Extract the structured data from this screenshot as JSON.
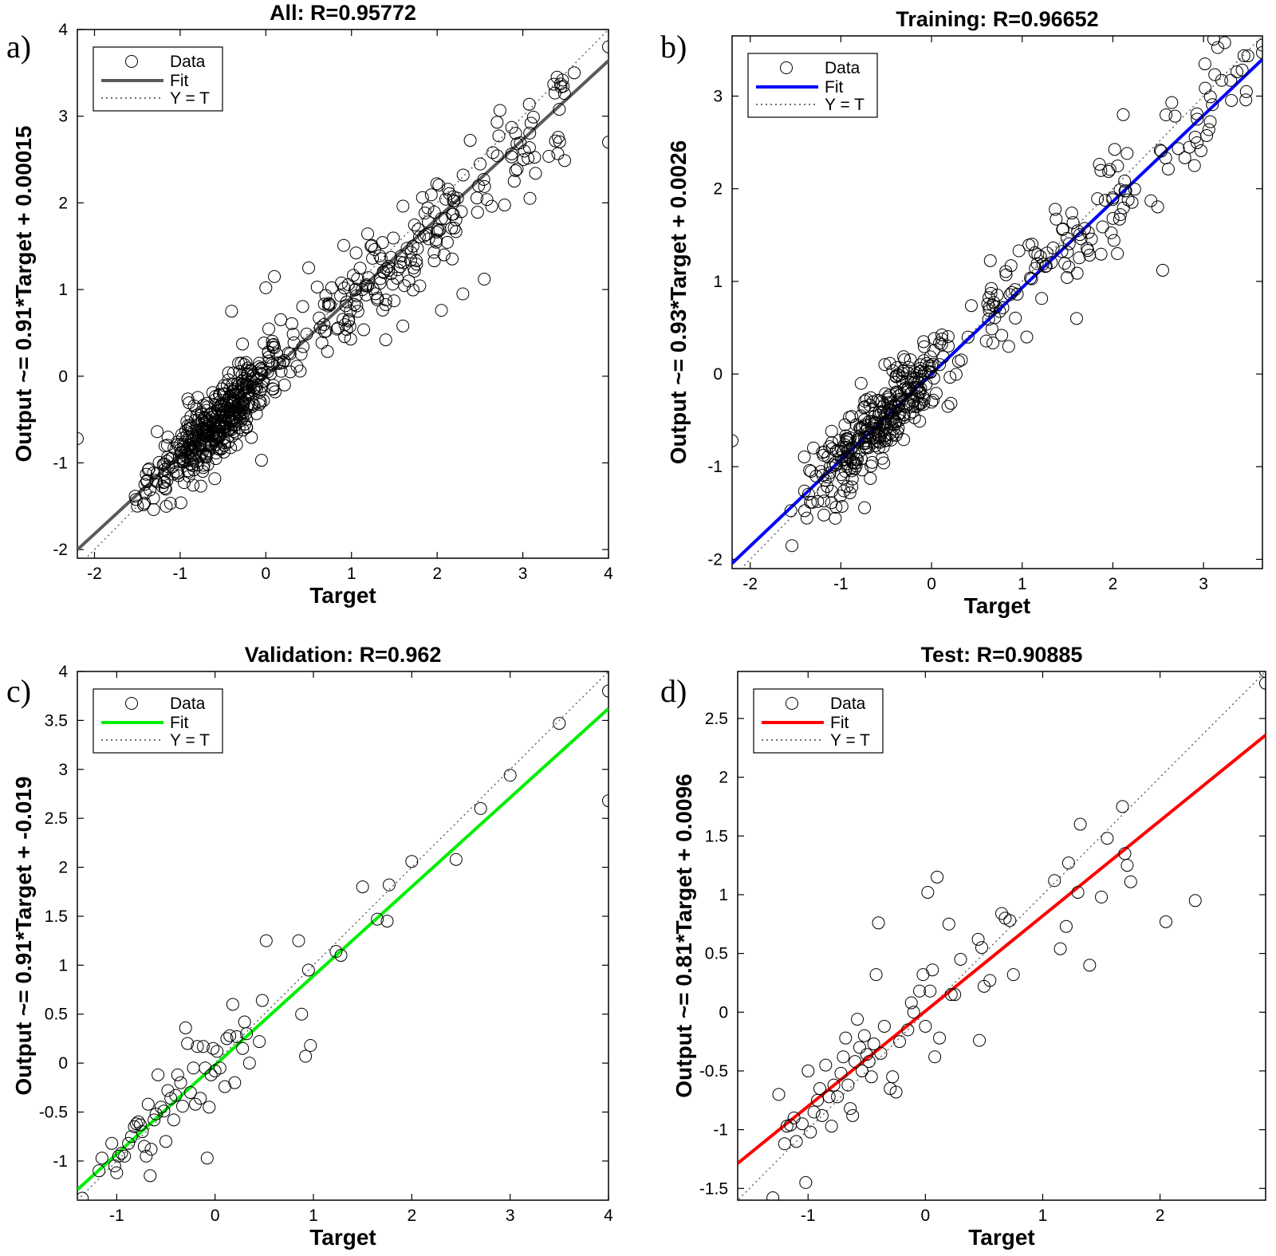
{
  "chart_data": [
    {
      "type": "scatter",
      "panel_label": "a)",
      "title": "All: R=0.95772",
      "xlabel": "Target",
      "ylabel": "Output ~= 0.91*Target + 0.00015",
      "xlim": [
        -2.2,
        4.0
      ],
      "ylim": [
        -2.1,
        4.0
      ],
      "xticks": [
        "-2",
        "-1",
        "0",
        "1",
        "2",
        "3",
        "4"
      ],
      "yticks": [
        "-2",
        "-1",
        "0",
        "1",
        "2",
        "3",
        "4"
      ],
      "fit": {
        "slope": 0.91,
        "intercept": 0.00015,
        "color": "#5a5a5a"
      },
      "legend": [
        "Data",
        "Fit",
        "Y = T"
      ],
      "legend_position": "top-left",
      "grid": false,
      "data_description": "approximately 700 points scattered around the fit line",
      "outlier_points": [
        [
          -2.2,
          -0.72
        ],
        [
          4.0,
          3.8
        ],
        [
          4.0,
          2.7
        ],
        [
          2.9,
          2.25
        ],
        [
          2.55,
          1.12
        ],
        [
          2.3,
          0.95
        ],
        [
          2.05,
          0.76
        ],
        [
          1.6,
          0.58
        ],
        [
          1.4,
          0.42
        ],
        [
          -0.05,
          -0.97
        ],
        [
          0.0,
          1.02
        ],
        [
          0.1,
          1.15
        ],
        [
          0.5,
          1.25
        ],
        [
          -0.4,
          0.75
        ],
        [
          3.6,
          3.5
        ],
        [
          3.4,
          3.45
        ],
        [
          2.7,
          2.93
        ],
        [
          2.65,
          2.58
        ]
      ]
    },
    {
      "type": "scatter",
      "panel_label": "b)",
      "title": "Training: R=0.96652",
      "xlabel": "Target",
      "ylabel": "Output ~= 0.93*Target + 0.0026",
      "xlim": [
        -2.2,
        3.65
      ],
      "ylim": [
        -2.1,
        3.65
      ],
      "xticks": [
        "-2",
        "-1",
        "0",
        "1",
        "2",
        "3"
      ],
      "yticks": [
        "-2",
        "-1",
        "0",
        "1",
        "2",
        "3"
      ],
      "fit": {
        "slope": 0.93,
        "intercept": 0.0026,
        "color": "#0000ff"
      },
      "legend": [
        "Data",
        "Fit",
        "Y = T"
      ],
      "legend_position": "top-left",
      "grid": false,
      "data_description": "approximately 500 points scattered around the fit line",
      "outlier_points": [
        [
          -2.2,
          -0.72
        ],
        [
          3.65,
          3.55
        ],
        [
          3.65,
          3.47
        ],
        [
          2.9,
          2.25
        ],
        [
          2.55,
          1.12
        ],
        [
          1.6,
          0.6
        ],
        [
          1.05,
          0.4
        ],
        [
          2.05,
          1.3
        ],
        [
          2.65,
          2.93
        ],
        [
          3.3,
          3.17
        ],
        [
          3.2,
          3.17
        ]
      ]
    },
    {
      "type": "scatter",
      "panel_label": "c)",
      "title": "Validation: R=0.962",
      "xlabel": "Target",
      "ylabel": "Output ~= 0.91*Target + -0.019",
      "xlim": [
        -1.4,
        4.0
      ],
      "ylim": [
        -1.4,
        4.0
      ],
      "xticks": [
        "-1",
        "0",
        "1",
        "2",
        "3",
        "4"
      ],
      "yticks": [
        "-1",
        "-0.5",
        "0",
        "0.5",
        "1",
        "1.5",
        "2",
        "2.5",
        "3",
        "3.5",
        "4"
      ],
      "fit": {
        "slope": 0.91,
        "intercept": -0.019,
        "color": "#00ee00"
      },
      "legend": [
        "Data",
        "Fit",
        "Y = T"
      ],
      "legend_position": "top-left",
      "grid": false,
      "points": [
        [
          -1.35,
          -1.38
        ],
        [
          -1.18,
          -1.1
        ],
        [
          -1.15,
          -0.97
        ],
        [
          -1.05,
          -0.82
        ],
        [
          -1.02,
          -1.05
        ],
        [
          -1.0,
          -1.12
        ],
        [
          -0.98,
          -0.95
        ],
        [
          -0.95,
          -0.92
        ],
        [
          -0.92,
          -0.95
        ],
        [
          -0.88,
          -0.82
        ],
        [
          -0.85,
          -0.75
        ],
        [
          -0.82,
          -0.65
        ],
        [
          -0.8,
          -0.62
        ],
        [
          -0.78,
          -0.6
        ],
        [
          -0.76,
          -0.63
        ],
        [
          -0.74,
          -0.7
        ],
        [
          -0.72,
          -0.85
        ],
        [
          -0.7,
          -0.95
        ],
        [
          -0.68,
          -0.42
        ],
        [
          -0.66,
          -1.15
        ],
        [
          -0.65,
          -0.88
        ],
        [
          -0.62,
          -0.58
        ],
        [
          -0.6,
          -0.52
        ],
        [
          -0.58,
          -0.12
        ],
        [
          -0.55,
          -0.45
        ],
        [
          -0.52,
          -0.49
        ],
        [
          -0.5,
          -0.8
        ],
        [
          -0.48,
          -0.28
        ],
        [
          -0.45,
          -0.36
        ],
        [
          -0.42,
          -0.58
        ],
        [
          -0.4,
          -0.33
        ],
        [
          -0.38,
          -0.12
        ],
        [
          -0.35,
          -0.2
        ],
        [
          -0.33,
          -0.44
        ],
        [
          -0.3,
          0.36
        ],
        [
          -0.28,
          0.2
        ],
        [
          -0.25,
          -0.3
        ],
        [
          -0.22,
          -0.05
        ],
        [
          -0.2,
          -0.42
        ],
        [
          -0.18,
          0.17
        ],
        [
          -0.15,
          -0.36
        ],
        [
          -0.12,
          0.17
        ],
        [
          -0.1,
          -0.05
        ],
        [
          -0.08,
          -0.97
        ],
        [
          -0.06,
          -0.45
        ],
        [
          -0.04,
          -0.12
        ],
        [
          -0.02,
          0.15
        ],
        [
          0.0,
          -0.08
        ],
        [
          0.02,
          0.12
        ],
        [
          0.05,
          -0.05
        ],
        [
          0.1,
          -0.24
        ],
        [
          0.12,
          0.25
        ],
        [
          0.15,
          0.28
        ],
        [
          0.18,
          0.6
        ],
        [
          0.2,
          -0.2
        ],
        [
          0.22,
          0.27
        ],
        [
          0.28,
          0.15
        ],
        [
          0.3,
          0.42
        ],
        [
          0.32,
          0.3
        ],
        [
          0.35,
          0.0
        ],
        [
          0.45,
          0.22
        ],
        [
          0.48,
          0.64
        ],
        [
          0.52,
          1.25
        ],
        [
          0.85,
          1.25
        ],
        [
          0.88,
          0.5
        ],
        [
          0.92,
          0.07
        ],
        [
          0.95,
          0.95
        ],
        [
          0.97,
          0.18
        ],
        [
          1.23,
          1.14
        ],
        [
          1.28,
          1.1
        ],
        [
          1.5,
          1.8
        ],
        [
          1.65,
          1.47
        ],
        [
          1.75,
          1.45
        ],
        [
          1.77,
          1.82
        ],
        [
          2.0,
          2.06
        ],
        [
          2.45,
          2.08
        ],
        [
          2.7,
          2.6
        ],
        [
          3.0,
          2.94
        ],
        [
          3.5,
          3.47
        ],
        [
          4.0,
          3.8
        ],
        [
          4.0,
          2.68
        ]
      ]
    },
    {
      "type": "scatter",
      "panel_label": "d)",
      "title": "Test: R=0.90885",
      "xlabel": "Target",
      "ylabel": "Output ~= 0.81*Target + 0.0096",
      "xlim": [
        -1.6,
        2.9
      ],
      "ylim": [
        -1.6,
        2.9
      ],
      "xticks": [
        "-1",
        "0",
        "1",
        "2"
      ],
      "yticks": [
        "-1.5",
        "-1",
        "-0.5",
        "0",
        "0.5",
        "1",
        "1.5",
        "2",
        "2.5"
      ],
      "fit": {
        "slope": 0.81,
        "intercept": 0.0096,
        "color": "#ff0000"
      },
      "legend": [
        "Data",
        "Fit",
        "Y = T"
      ],
      "legend_position": "top-left",
      "grid": false,
      "points": [
        [
          -1.3,
          -1.58
        ],
        [
          -1.25,
          -0.7
        ],
        [
          -1.2,
          -1.12
        ],
        [
          -1.18,
          -0.97
        ],
        [
          -1.15,
          -0.96
        ],
        [
          -1.12,
          -0.9
        ],
        [
          -1.1,
          -1.1
        ],
        [
          -1.05,
          -0.95
        ],
        [
          -1.02,
          -1.45
        ],
        [
          -1.0,
          -0.5
        ],
        [
          -0.98,
          -1.02
        ],
        [
          -0.95,
          -0.85
        ],
        [
          -0.92,
          -0.75
        ],
        [
          -0.9,
          -0.65
        ],
        [
          -0.88,
          -0.88
        ],
        [
          -0.85,
          -0.45
        ],
        [
          -0.82,
          -0.72
        ],
        [
          -0.8,
          -0.97
        ],
        [
          -0.78,
          -0.62
        ],
        [
          -0.75,
          -0.72
        ],
        [
          -0.72,
          -0.52
        ],
        [
          -0.7,
          -0.38
        ],
        [
          -0.68,
          -0.22
        ],
        [
          -0.66,
          -0.62
        ],
        [
          -0.64,
          -0.82
        ],
        [
          -0.62,
          -0.88
        ],
        [
          -0.6,
          -0.42
        ],
        [
          -0.58,
          -0.06
        ],
        [
          -0.56,
          -0.3
        ],
        [
          -0.54,
          -0.5
        ],
        [
          -0.52,
          -0.2
        ],
        [
          -0.5,
          -0.36
        ],
        [
          -0.48,
          -0.42
        ],
        [
          -0.46,
          -0.55
        ],
        [
          -0.44,
          -0.27
        ],
        [
          -0.42,
          0.32
        ],
        [
          -0.4,
          0.76
        ],
        [
          -0.38,
          -0.35
        ],
        [
          -0.35,
          -0.12
        ],
        [
          -0.3,
          -0.65
        ],
        [
          -0.28,
          -0.55
        ],
        [
          -0.25,
          -0.68
        ],
        [
          -0.22,
          -0.25
        ],
        [
          -0.15,
          -0.15
        ],
        [
          -0.12,
          0.08
        ],
        [
          -0.1,
          0.0
        ],
        [
          -0.05,
          0.18
        ],
        [
          -0.02,
          0.32
        ],
        [
          0.0,
          -0.12
        ],
        [
          0.02,
          1.02
        ],
        [
          0.04,
          0.18
        ],
        [
          0.06,
          0.36
        ],
        [
          0.08,
          -0.38
        ],
        [
          0.1,
          1.15
        ],
        [
          0.12,
          -0.22
        ],
        [
          0.2,
          0.75
        ],
        [
          0.22,
          0.15
        ],
        [
          0.25,
          0.15
        ],
        [
          0.3,
          0.45
        ],
        [
          0.45,
          0.62
        ],
        [
          0.48,
          0.55
        ],
        [
          0.5,
          0.22
        ],
        [
          0.55,
          0.27
        ],
        [
          0.65,
          0.84
        ],
        [
          0.68,
          0.8
        ],
        [
          0.72,
          0.78
        ],
        [
          0.75,
          0.32
        ],
        [
          0.46,
          -0.24
        ],
        [
          1.1,
          1.12
        ],
        [
          1.15,
          0.54
        ],
        [
          1.2,
          0.73
        ],
        [
          1.22,
          1.27
        ],
        [
          1.3,
          1.02
        ],
        [
          1.32,
          1.6
        ],
        [
          1.4,
          0.4
        ],
        [
          1.5,
          0.98
        ],
        [
          1.55,
          1.48
        ],
        [
          1.68,
          1.75
        ],
        [
          1.7,
          1.35
        ],
        [
          1.72,
          1.25
        ],
        [
          1.75,
          1.11
        ],
        [
          2.05,
          0.77
        ],
        [
          2.3,
          0.95
        ],
        [
          2.9,
          2.9
        ],
        [
          2.9,
          2.8
        ]
      ]
    }
  ]
}
